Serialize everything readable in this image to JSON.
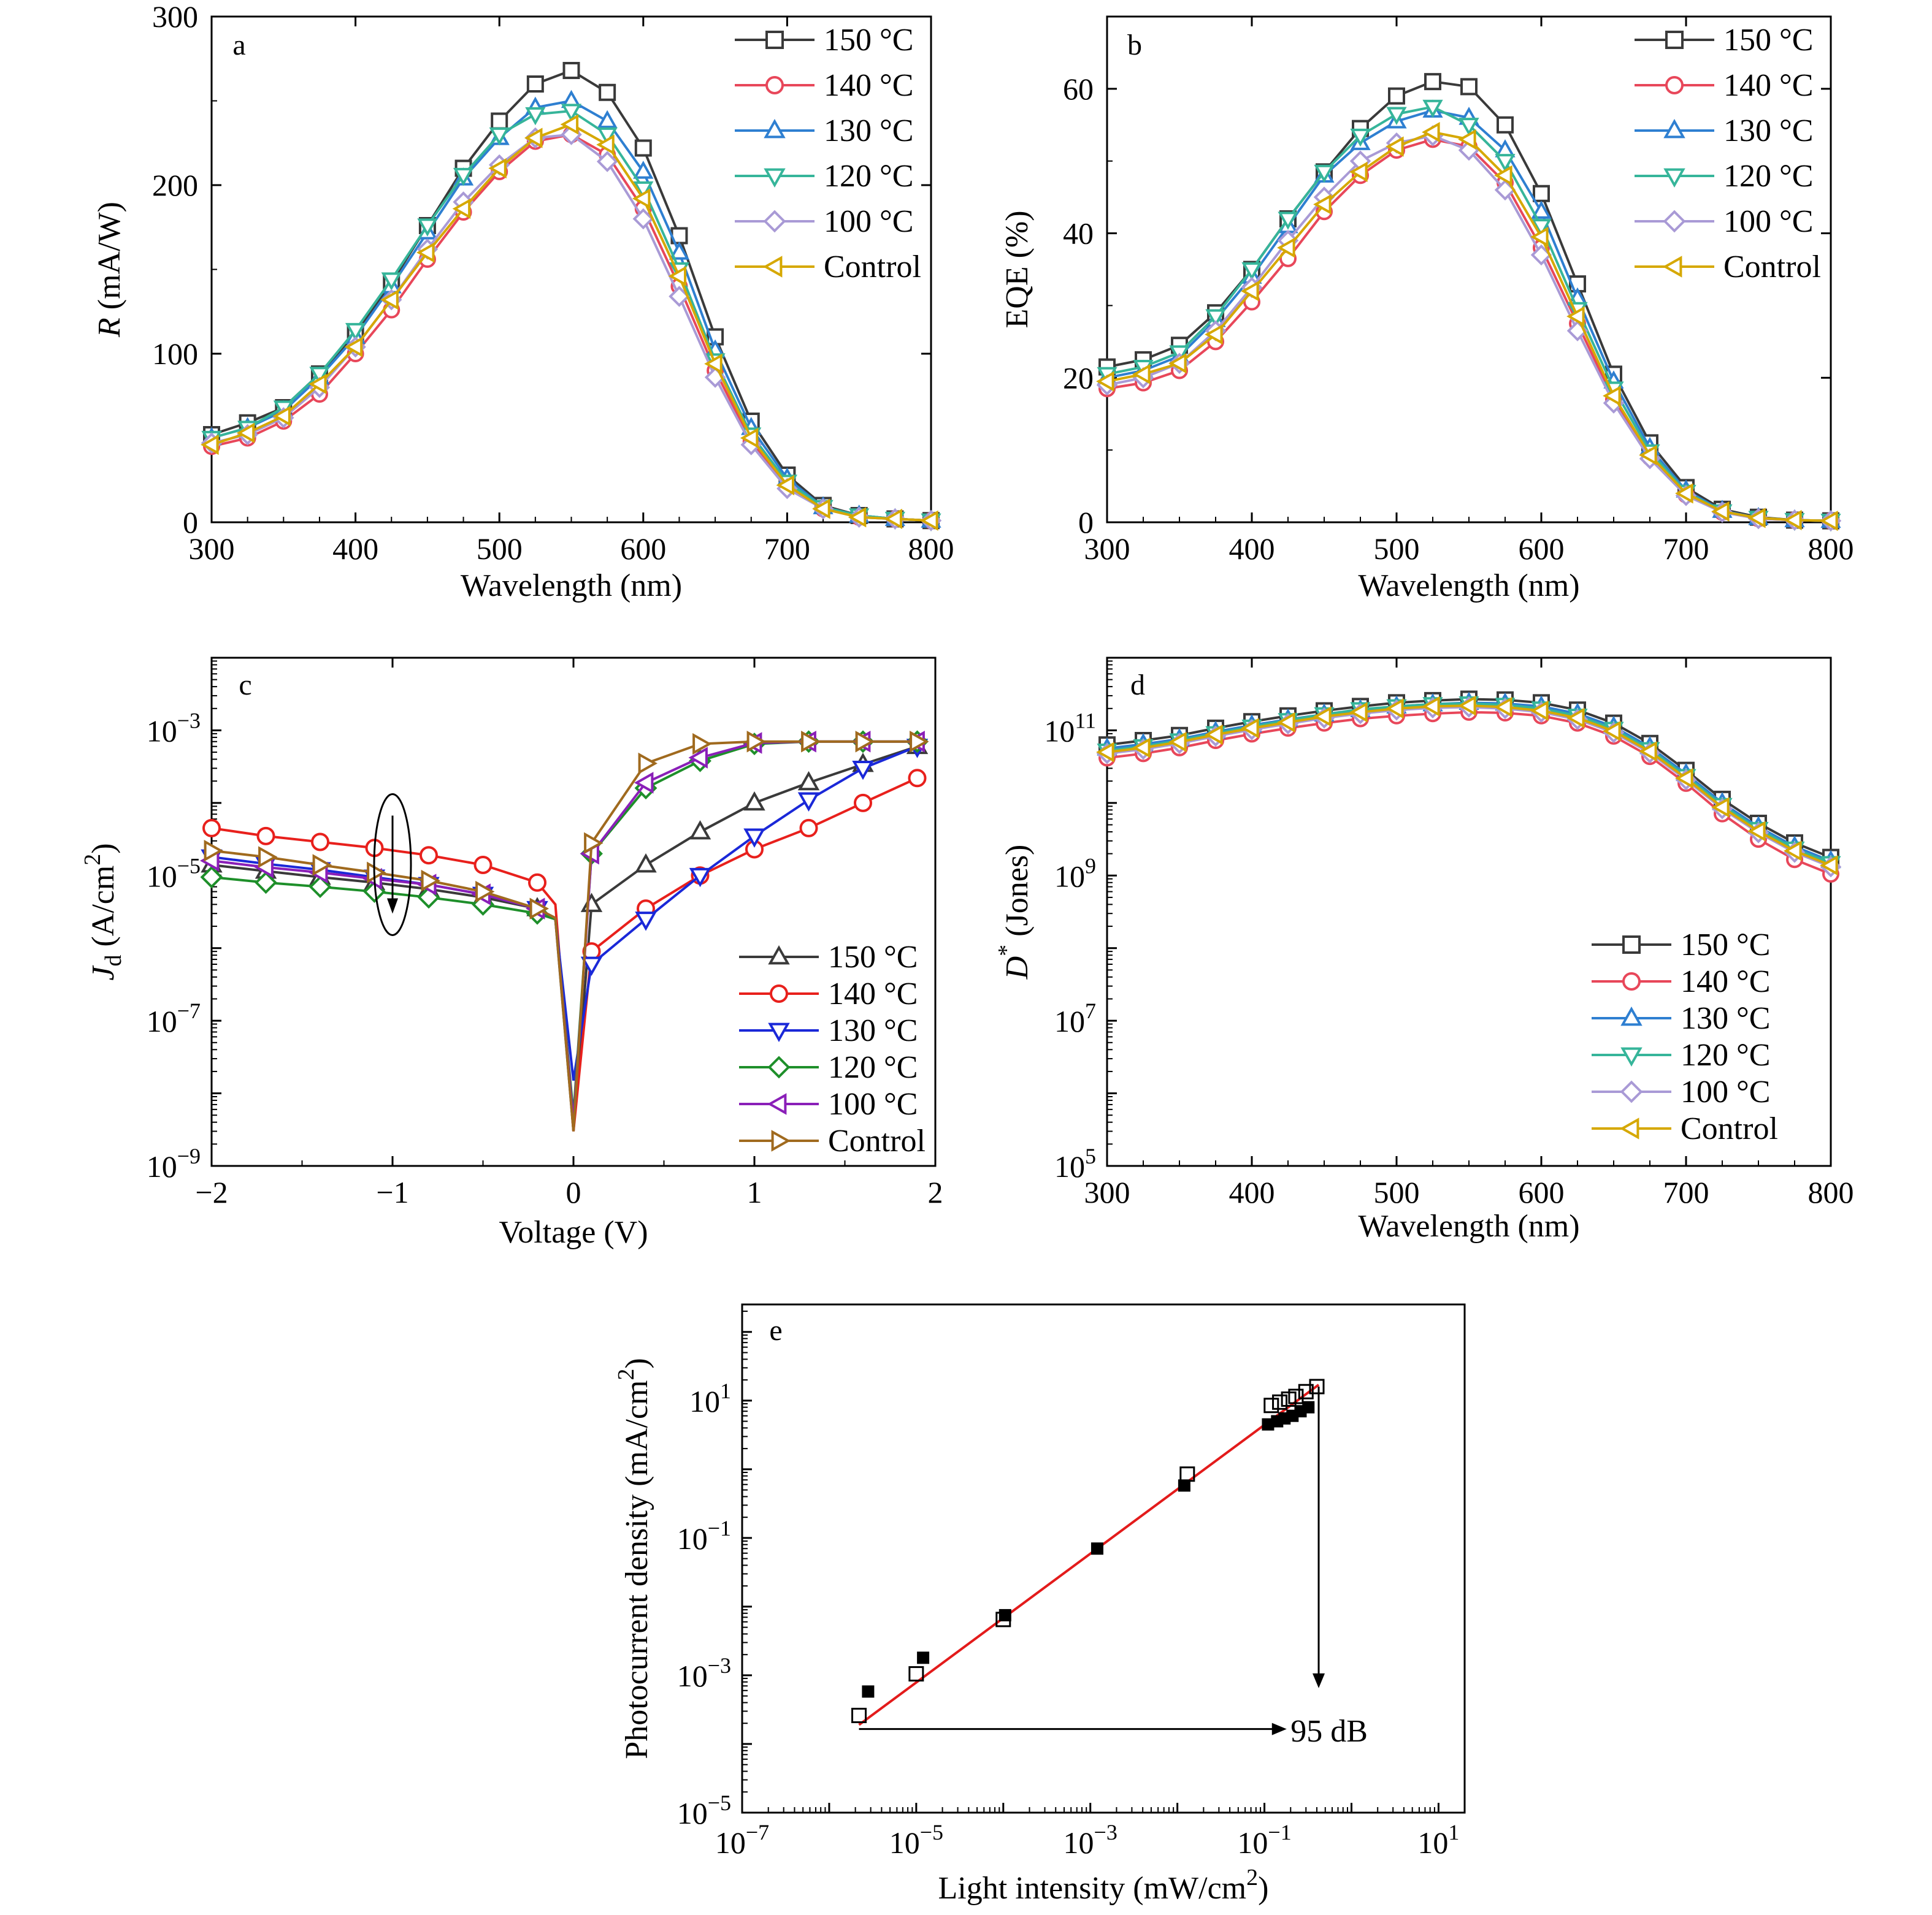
{
  "colors": {
    "150C": "#3a3a3a",
    "140C": "#e8475a",
    "130C": "#2e7fd1",
    "120C": "#36b59a",
    "100C": "#a99ad6",
    "Control": "#d6a800",
    "c_150C": "#3a3a3a",
    "c_140C": "#e8201c",
    "c_130C": "#1a28d8",
    "c_120C": "#1e8f2a",
    "c_100C": "#8a1fb8",
    "c_Control": "#a06a1e",
    "fit": "#e31b1b",
    "arrow": "#000000"
  },
  "chart_data": [
    {
      "panel": "a",
      "type": "line",
      "xlabel": "Wavelength (nm)",
      "ylabel_italic": "R",
      "ylabel_rest": " (mA/W)",
      "xlim": [
        300,
        800
      ],
      "ylim": [
        0,
        300
      ],
      "xticks": [
        300,
        400,
        500,
        600,
        700,
        800
      ],
      "yticks": [
        0,
        100,
        200,
        300
      ],
      "legend_position": "top-right",
      "x": [
        300,
        325,
        350,
        375,
        400,
        425,
        450,
        475,
        500,
        525,
        550,
        575,
        600,
        625,
        650,
        675,
        700,
        725,
        750,
        775,
        800
      ],
      "series": [
        {
          "name": "150 °C",
          "key": "150C",
          "marker": "square",
          "values": [
            52,
            59,
            68,
            88,
            112,
            142,
            176,
            210,
            238,
            260,
            268,
            255,
            222,
            170,
            110,
            60,
            28,
            10,
            4,
            2,
            1
          ]
        },
        {
          "name": "140 °C",
          "key": "140C",
          "marker": "circle",
          "values": [
            45,
            50,
            60,
            76,
            100,
            126,
            156,
            184,
            208,
            226,
            230,
            218,
            186,
            140,
            90,
            48,
            22,
            8,
            3,
            2,
            1
          ]
        },
        {
          "name": "130 °C",
          "key": "130C",
          "marker": "triangle-up",
          "values": [
            50,
            56,
            66,
            86,
            110,
            140,
            172,
            204,
            228,
            246,
            250,
            238,
            208,
            160,
            102,
            56,
            26,
            9,
            4,
            2,
            1
          ]
        },
        {
          "name": "120 °C",
          "key": "120C",
          "marker": "triangle-down",
          "values": [
            50,
            56,
            68,
            88,
            114,
            144,
            176,
            206,
            230,
            242,
            244,
            230,
            198,
            150,
            96,
            52,
            24,
            9,
            4,
            2,
            1
          ]
        },
        {
          "name": "100 °C",
          "key": "100C",
          "marker": "diamond",
          "values": [
            47,
            52,
            62,
            80,
            104,
            132,
            162,
            190,
            212,
            228,
            230,
            214,
            180,
            134,
            86,
            46,
            20,
            8,
            3,
            2,
            1
          ]
        },
        {
          "name": "Control",
          "key": "Control",
          "marker": "triangle-left",
          "values": [
            46,
            53,
            63,
            82,
            104,
            132,
            160,
            186,
            210,
            228,
            236,
            224,
            192,
            146,
            94,
            50,
            22,
            8,
            3,
            2,
            1
          ]
        }
      ]
    },
    {
      "panel": "b",
      "type": "line",
      "xlabel": "Wavelength (nm)",
      "ylabel_italic": "",
      "ylabel_rest": "EQE (%)",
      "xlim": [
        300,
        800
      ],
      "ylim": [
        0,
        70
      ],
      "xticks": [
        300,
        400,
        500,
        600,
        700,
        800
      ],
      "yticks": [
        0,
        20,
        40,
        60
      ],
      "legend_position": "top-right",
      "x": [
        300,
        325,
        350,
        375,
        400,
        425,
        450,
        475,
        500,
        525,
        550,
        575,
        600,
        625,
        650,
        675,
        700,
        725,
        750,
        775,
        800
      ],
      "series": [
        {
          "name": "150 °C",
          "key": "150C",
          "marker": "square",
          "values": [
            21.5,
            22.5,
            24.5,
            29,
            35,
            42,
            48.5,
            54.5,
            59,
            61,
            60.3,
            55,
            45.5,
            33,
            20.5,
            11,
            4.8,
            1.8,
            0.7,
            0.3,
            0.2
          ]
        },
        {
          "name": "140 °C",
          "key": "140C",
          "marker": "circle",
          "values": [
            18.5,
            19.3,
            21,
            25,
            30.5,
            36.5,
            43,
            48,
            51.5,
            53,
            52,
            47,
            38,
            27.5,
            17,
            9,
            3.8,
            1.4,
            0.5,
            0.3,
            0.2
          ]
        },
        {
          "name": "130 °C",
          "key": "130C",
          "marker": "triangle-up",
          "values": [
            20,
            21,
            23,
            28,
            34,
            41,
            48,
            52.5,
            55.5,
            57,
            56,
            51.5,
            43,
            31,
            19.5,
            10.3,
            4.4,
            1.6,
            0.6,
            0.3,
            0.2
          ]
        },
        {
          "name": "120 °C",
          "key": "120C",
          "marker": "triangle-down",
          "values": [
            20.5,
            21.5,
            23.5,
            28.5,
            35,
            42,
            48.5,
            53.5,
            56.5,
            57.5,
            55,
            50,
            41,
            29.5,
            18.5,
            9.8,
            4.2,
            1.5,
            0.6,
            0.3,
            0.2
          ]
        },
        {
          "name": "100 °C",
          "key": "100C",
          "marker": "diamond",
          "values": [
            19,
            20,
            22,
            26.5,
            32.5,
            39,
            45,
            50,
            52.5,
            53.5,
            51.5,
            46,
            37,
            26.5,
            16.5,
            8.8,
            3.7,
            1.4,
            0.5,
            0.3,
            0.2
          ]
        },
        {
          "name": "Control",
          "key": "Control",
          "marker": "triangle-left",
          "values": [
            19.5,
            20.5,
            22,
            26,
            32,
            38,
            44,
            48.5,
            52,
            54,
            53,
            48,
            39.5,
            28.5,
            17.5,
            9.3,
            4,
            1.5,
            0.6,
            0.3,
            0.2
          ]
        }
      ]
    },
    {
      "panel": "c",
      "type": "line",
      "xlabel": "Voltage (V)",
      "ylabel_italic": "J",
      "ylabel_sub": "d",
      "ylabel_rest": " (A/cm",
      "ylabel_sup": "2",
      "ylabel_end": ")",
      "xlim": [
        -2,
        2
      ],
      "ylim_log10": [
        -9,
        -2
      ],
      "xticks": [
        -2,
        -1,
        0,
        1,
        2
      ],
      "xticklabels": [
        "−2",
        "−1",
        "0",
        "1",
        "2"
      ],
      "yticks_log10": [
        -9,
        -7,
        -5,
        -3
      ],
      "log_scale_y": true,
      "legend_position": "bottom-right",
      "annotation": "ellipse with downward arrow near −1 V",
      "series": [
        {
          "name": "150 °C",
          "key": "c_150C",
          "marker": "triangle-up",
          "x": [
            -2,
            -1.7,
            -1.4,
            -1.1,
            -0.8,
            -0.5,
            -0.2,
            -0.1,
            0,
            0.1,
            0.4,
            0.7,
            1.0,
            1.3,
            1.6,
            1.9
          ],
          "y": [
            1.4e-05,
            1.15e-05,
            9.5e-06,
            8e-06,
            6.5e-06,
            5e-06,
            3.5e-06,
            2.5e-06,
            3e-09,
            4e-06,
            1.4e-05,
            4e-05,
            0.0001,
            0.00019,
            0.00034,
            0.0006
          ]
        },
        {
          "name": "140 °C",
          "key": "c_140C",
          "marker": "circle",
          "x": [
            -2,
            -1.7,
            -1.4,
            -1.1,
            -0.8,
            -0.5,
            -0.2,
            -0.1,
            0,
            0.1,
            0.4,
            0.7,
            1.0,
            1.3,
            1.6,
            1.9
          ],
          "y": [
            4.5e-05,
            3.5e-05,
            2.9e-05,
            2.4e-05,
            1.9e-05,
            1.4e-05,
            8e-06,
            4e-06,
            3e-09,
            9e-07,
            3.5e-06,
            1e-05,
            2.3e-05,
            4.5e-05,
            0.0001,
            0.00022
          ]
        },
        {
          "name": "130 °C",
          "key": "c_130C",
          "marker": "triangle-down",
          "x": [
            -2,
            -1.7,
            -1.4,
            -1.1,
            -0.8,
            -0.5,
            -0.2,
            -0.1,
            0,
            0.1,
            0.4,
            0.7,
            1.0,
            1.3,
            1.6,
            1.9
          ],
          "y": [
            1.8e-05,
            1.45e-05,
            1.2e-05,
            9.5e-06,
            7.5e-06,
            5.5e-06,
            3.5e-06,
            2.5e-06,
            1.5e-08,
            6e-07,
            2.5e-06,
            1e-05,
            3.5e-05,
            0.00011,
            0.0003,
            0.0006
          ]
        },
        {
          "name": "120 °C",
          "key": "c_120C",
          "marker": "diamond",
          "x": [
            -2,
            -1.7,
            -1.4,
            -1.1,
            -0.8,
            -0.5,
            -0.2,
            -0.1,
            0,
            0.1,
            0.4,
            0.7,
            1.0,
            1.3,
            1.6,
            1.9
          ],
          "y": [
            9.5e-06,
            8e-06,
            7e-06,
            6e-06,
            5e-06,
            4e-06,
            3e-06,
            2.5e-06,
            5e-09,
            2e-05,
            0.00016,
            0.00038,
            0.00065,
            0.0007,
            0.0007,
            0.0007
          ]
        },
        {
          "name": "100 °C",
          "key": "c_100C",
          "marker": "triangle-left",
          "x": [
            -2,
            -1.7,
            -1.4,
            -1.1,
            -0.8,
            -0.5,
            -0.2,
            -0.1,
            0,
            0.1,
            0.4,
            0.7,
            1.0,
            1.3,
            1.6,
            1.9
          ],
          "y": [
            1.6e-05,
            1.3e-05,
            1.1e-05,
            9e-06,
            7.5e-06,
            5.5e-06,
            3.5e-06,
            2.6e-06,
            4e-09,
            2e-05,
            0.00019,
            0.00042,
            0.00067,
            0.0007,
            0.0007,
            0.0007
          ]
        },
        {
          "name": "Control",
          "key": "c_Control",
          "marker": "triangle-right",
          "x": [
            -2,
            -1.7,
            -1.4,
            -1.1,
            -0.8,
            -0.5,
            -0.2,
            -0.1,
            0,
            0.1,
            0.4,
            0.7,
            1.0,
            1.3,
            1.6,
            1.9
          ],
          "y": [
            2.2e-05,
            1.8e-05,
            1.4e-05,
            1.1e-05,
            8.5e-06,
            6e-06,
            3.5e-06,
            2.6e-06,
            3e-09,
            2.8e-05,
            0.00035,
            0.00065,
            0.0007,
            0.0007,
            0.0007,
            0.0007
          ]
        }
      ]
    },
    {
      "panel": "d",
      "type": "line",
      "xlabel": "Wavelength (nm)",
      "ylabel_italic": "D",
      "ylabel_sup": "*",
      "ylabel_rest": " (Jones)",
      "xlim": [
        300,
        800
      ],
      "ylim_log10": [
        5,
        12
      ],
      "xticks": [
        300,
        400,
        500,
        600,
        700,
        800
      ],
      "yticks_log10": [
        5,
        7,
        9,
        11
      ],
      "log_scale_y": true,
      "legend_position": "bottom-right",
      "x": [
        300,
        325,
        350,
        375,
        400,
        425,
        450,
        475,
        500,
        525,
        550,
        575,
        600,
        625,
        650,
        675,
        700,
        725,
        750,
        775,
        800
      ],
      "series": [
        {
          "name": "150 °C",
          "key": "150C",
          "marker": "square",
          "values_log10": [
            10.8,
            10.86,
            10.93,
            11.03,
            11.12,
            11.2,
            11.27,
            11.33,
            11.38,
            11.41,
            11.43,
            11.42,
            11.38,
            11.28,
            11.1,
            10.82,
            10.45,
            10.05,
            9.72,
            9.45,
            9.25
          ]
        },
        {
          "name": "140 °C",
          "key": "140C",
          "marker": "circle",
          "values_log10": [
            10.62,
            10.68,
            10.76,
            10.86,
            10.95,
            11.03,
            11.1,
            11.16,
            11.2,
            11.23,
            11.25,
            11.24,
            11.2,
            11.1,
            10.92,
            10.64,
            10.27,
            9.85,
            9.5,
            9.22,
            9.02
          ]
        },
        {
          "name": "130 °C",
          "key": "130C",
          "marker": "triangle-up",
          "values_log10": [
            10.75,
            10.81,
            10.88,
            10.98,
            11.07,
            11.15,
            11.22,
            11.28,
            11.33,
            11.36,
            11.38,
            11.37,
            11.33,
            11.23,
            11.05,
            10.77,
            10.4,
            10.0,
            9.67,
            9.4,
            9.2
          ]
        },
        {
          "name": "120 °C",
          "key": "120C",
          "marker": "triangle-down",
          "values_log10": [
            10.72,
            10.78,
            10.86,
            10.96,
            11.05,
            11.14,
            11.22,
            11.29,
            11.33,
            11.36,
            11.37,
            11.35,
            11.3,
            11.2,
            11.02,
            10.74,
            10.37,
            9.97,
            9.64,
            9.37,
            9.17
          ]
        },
        {
          "name": "100 °C",
          "key": "100C",
          "marker": "diamond",
          "values_log10": [
            10.68,
            10.74,
            10.82,
            10.92,
            11.01,
            11.09,
            11.17,
            11.23,
            11.28,
            11.31,
            11.32,
            11.3,
            11.25,
            11.15,
            10.97,
            10.69,
            10.32,
            9.92,
            9.59,
            9.32,
            9.12
          ]
        },
        {
          "name": "Control",
          "key": "Control",
          "marker": "triangle-left",
          "values_log10": [
            10.7,
            10.76,
            10.84,
            10.94,
            11.03,
            11.11,
            11.19,
            11.25,
            11.3,
            11.33,
            11.34,
            11.32,
            11.27,
            11.17,
            10.99,
            10.71,
            10.34,
            9.94,
            9.61,
            9.34,
            9.14
          ]
        }
      ]
    },
    {
      "panel": "e",
      "type": "scatter",
      "xlabel": "Light intensity (mW/cm",
      "xlabel_sup": "2",
      "xlabel_end": ")",
      "ylabel_rest": "Photocurrent density (mA/cm",
      "ylabel_sup": "2",
      "ylabel_end": ")",
      "log_scale_x": true,
      "log_scale_y": true,
      "xlim_log10": [
        -7,
        1.3
      ],
      "ylim_log10": [
        -5,
        2.4
      ],
      "xticks_log10": [
        -7,
        -5,
        -3,
        -1,
        1
      ],
      "yticks_log10": [
        -5,
        -3,
        -1,
        1
      ],
      "annotation": "95 dB",
      "series": [
        {
          "name": "open",
          "marker": "square-open",
          "x": [
            2.2e-06,
            1e-05,
            0.0001,
            0.013,
            0.12,
            0.15,
            0.19,
            0.23,
            0.3,
            0.4
          ],
          "y": [
            0.00026,
            0.00105,
            0.0065,
            0.85,
            8.5,
            9.5,
            10.5,
            11.5,
            13.5,
            16
          ]
        },
        {
          "name": "filled",
          "marker": "square-filled",
          "x": [
            2.8e-06,
            1.2e-05,
            0.000105,
            0.0012,
            0.012,
            0.11,
            0.14,
            0.17,
            0.21,
            0.26,
            0.32
          ],
          "y": [
            0.00058,
            0.0018,
            0.0075,
            0.07,
            0.58,
            4.5,
            5.0,
            5.5,
            6.0,
            7.0,
            8.0
          ]
        },
        {
          "name": "fit",
          "marker": "line",
          "x": [
            2.2e-06,
            0.42
          ],
          "y": [
            0.00019,
            17
          ]
        }
      ],
      "arrow_h": {
        "x_from": 2.2e-06,
        "x_to": 0.18,
        "y": 0.000165
      },
      "arrow_v": {
        "x": 0.42,
        "y_from": 16,
        "y_to": 0.00065
      },
      "annotation_pos": {
        "x": 0.2,
        "y": 0.00021
      }
    }
  ]
}
